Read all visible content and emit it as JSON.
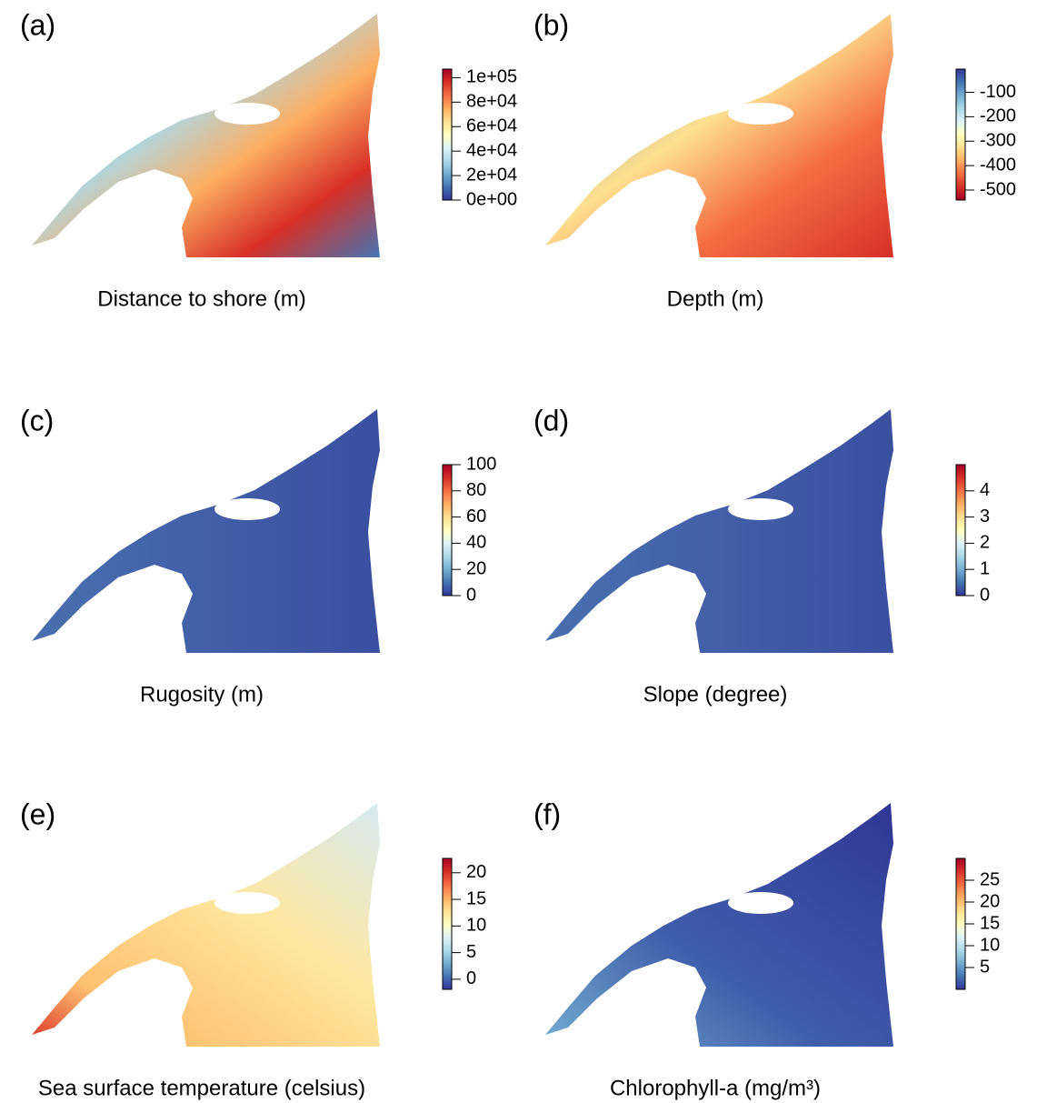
{
  "colormap": [
    "#313695",
    "#4575b4",
    "#74add1",
    "#abd9e9",
    "#e0f3f8",
    "#ffffbf",
    "#fee090",
    "#fdae61",
    "#f46d43",
    "#d73027",
    "#a50026"
  ],
  "panels": [
    {
      "label": "(a)",
      "title": "Distance to shore (m)",
      "reversed": false,
      "lim": [
        0,
        107000
      ],
      "ticks": [
        {
          "value": 0,
          "label": "0e+00"
        },
        {
          "value": 20000,
          "label": "2e+04"
        },
        {
          "value": 40000,
          "label": "4e+04"
        },
        {
          "value": 60000,
          "label": "6e+04"
        },
        {
          "value": 80000,
          "label": "8e+04"
        },
        {
          "value": 100000,
          "label": "1e+05"
        }
      ]
    },
    {
      "label": "(b)",
      "title": "Depth (m)",
      "reversed": true,
      "lim": [
        -541,
        -5
      ],
      "ticks": [
        -500,
        -400,
        -300,
        -200,
        -100
      ]
    },
    {
      "label": "(c)",
      "title": "Rugosity (m)",
      "reversed": false,
      "lim": [
        0,
        100
      ],
      "ticks": [
        0,
        20,
        40,
        60,
        80,
        100
      ]
    },
    {
      "label": "(d)",
      "title": "Slope (degree)",
      "reversed": false,
      "lim": [
        0,
        5
      ],
      "ticks": [
        0,
        1,
        2,
        3,
        4
      ]
    },
    {
      "label": "(e)",
      "title": "Sea surface temperature (celsius)",
      "reversed": false,
      "lim": [
        -1.9,
        22.7
      ],
      "ticks": [
        0,
        5,
        10,
        15,
        20
      ]
    },
    {
      "label": "(f)",
      "title": "Chlorophyll-a (mg/m³)",
      "reversed": false,
      "lim": [
        0,
        30
      ],
      "ticks": [
        5,
        10,
        15,
        20,
        25
      ]
    }
  ]
}
